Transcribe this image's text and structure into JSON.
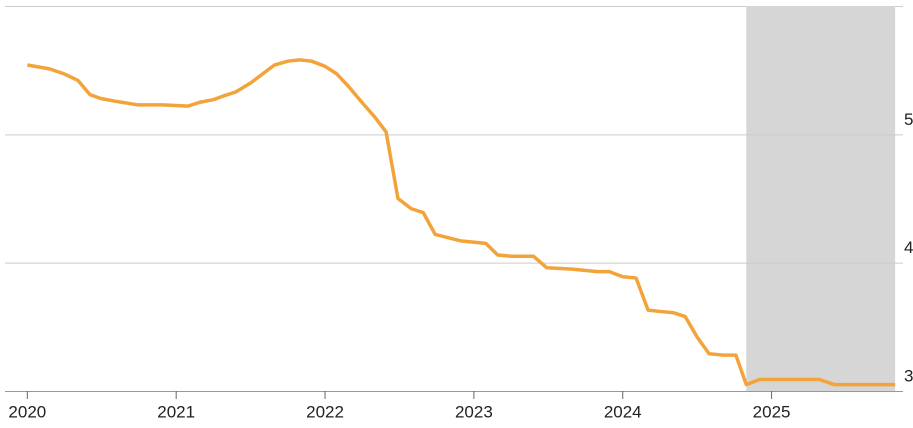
{
  "chart_data": {
    "type": "line",
    "x": [
      2020.0,
      2020.15,
      2020.25,
      2020.34,
      2020.42,
      2020.49,
      2020.58,
      2020.74,
      2020.91,
      2021.08,
      2021.16,
      2021.25,
      2021.32,
      2021.4,
      2021.5,
      2021.58,
      2021.66,
      2021.75,
      2021.83,
      2021.91,
      2022.0,
      2022.08,
      2022.16,
      2022.24,
      2022.33,
      2022.41,
      2022.49,
      2022.58,
      2022.66,
      2022.74,
      2022.91,
      2023.08,
      2023.16,
      2023.25,
      2023.4,
      2023.49,
      2023.66,
      2023.83,
      2023.91,
      2024.0,
      2024.09,
      2024.17,
      2024.25,
      2024.34,
      2024.42,
      2024.5,
      2024.58,
      2024.67,
      2024.76,
      2024.83,
      2024.92,
      2025.0,
      2025.17,
      2025.32,
      2025.42,
      2025.83
    ],
    "series": [
      {
        "color": "#f2a43a",
        "values": [
          5.54,
          5.51,
          5.47,
          5.42,
          5.31,
          5.28,
          5.26,
          5.23,
          5.23,
          5.22,
          5.25,
          5.27,
          5.3,
          5.33,
          5.4,
          5.47,
          5.54,
          5.57,
          5.58,
          5.57,
          5.53,
          5.47,
          5.37,
          5.26,
          5.14,
          5.02,
          4.5,
          4.42,
          4.39,
          4.22,
          4.17,
          4.15,
          4.06,
          4.05,
          4.05,
          3.96,
          3.95,
          3.93,
          3.93,
          3.89,
          3.88,
          3.63,
          3.62,
          3.61,
          3.58,
          3.42,
          3.29,
          3.28,
          3.28,
          3.05,
          3.09,
          3.09,
          3.09,
          3.09,
          3.05,
          3.05
        ]
      }
    ],
    "xlim": [
      2019.85,
      2025.95
    ],
    "xticks": [
      2020,
      2021,
      2022,
      2023,
      2024,
      2025
    ],
    "ylim": [
      3,
      6
    ],
    "yticks": [
      3,
      4,
      5
    ],
    "grid": true,
    "shaded_span": [
      2024.83,
      2025.83
    ],
    "shade_color": "#d6d6d6"
  }
}
